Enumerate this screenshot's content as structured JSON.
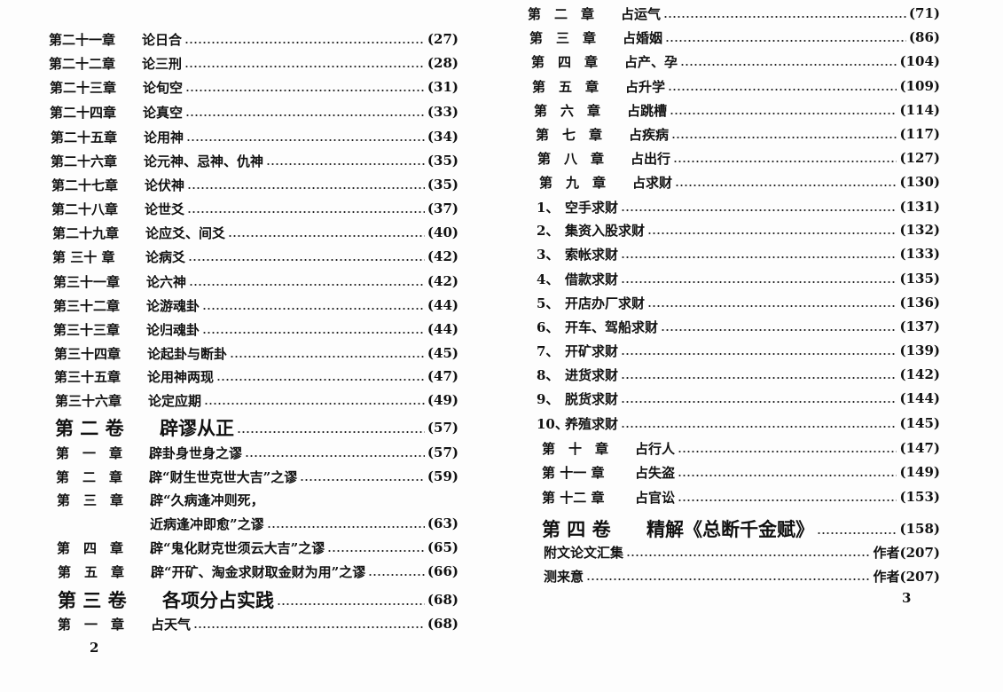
{
  "left_page": {
    "page_number": "2",
    "entries": [
      {
        "type": "chapter",
        "num": "第二十一章",
        "title": "论日合",
        "page": "(27)"
      },
      {
        "type": "chapter",
        "num": "第二十二章",
        "title": "论三刑",
        "page": "(28)"
      },
      {
        "type": "chapter",
        "num": "第二十三章",
        "title": "论旬空",
        "page": "(31)"
      },
      {
        "type": "chapter",
        "num": "第二十四章",
        "title": "论真空",
        "page": "(33)"
      },
      {
        "type": "chapter",
        "num": "第二十五章",
        "title": "论用神",
        "page": "(34)"
      },
      {
        "type": "chapter",
        "num": "第二十六章",
        "title": "论元神、忌神、仇神",
        "page": "(35)"
      },
      {
        "type": "chapter",
        "num": "第二十七章",
        "title": "论伏神",
        "page": "(35)"
      },
      {
        "type": "chapter",
        "num": "第二十八章",
        "title": "论世爻",
        "page": "(37)"
      },
      {
        "type": "chapter",
        "num": "第二十九章",
        "title": "论应爻、间爻",
        "page": "(40)"
      },
      {
        "type": "chapter",
        "num": "第 三十 章",
        "title": "论病爻",
        "page": "(42)"
      },
      {
        "type": "chapter",
        "num": "第三十一章",
        "title": "论六神",
        "page": "(42)"
      },
      {
        "type": "chapter",
        "num": "第三十二章",
        "title": "论游魂卦",
        "page": "(44)"
      },
      {
        "type": "chapter",
        "num": "第三十三章",
        "title": "论归魂卦",
        "page": "(44)"
      },
      {
        "type": "chapter",
        "num": "第三十四章",
        "title": "论起卦与断卦",
        "page": "(45)"
      },
      {
        "type": "chapter",
        "num": "第三十五章",
        "title": "论用神两现",
        "page": "(47)"
      },
      {
        "type": "chapter",
        "num": "第三十六章",
        "title": "论定应期",
        "page": "(49)"
      },
      {
        "type": "volume",
        "num": "第 二 卷",
        "title": "辟谬从正",
        "page": "(57)"
      },
      {
        "type": "chapter",
        "num": "第　一　章",
        "title": "辟卦身世身之谬",
        "page": "(57)"
      },
      {
        "type": "chapter",
        "num": "第　二　章",
        "title": "辟“财生世克世大吉”之谬",
        "page": "(59)"
      },
      {
        "type": "cont",
        "num": "第　三　章",
        "title": "辟“久病逢冲则死，",
        "page": ""
      },
      {
        "type": "chapter",
        "num": "",
        "title": "近病逢冲即愈”之谬",
        "page": "(63)"
      },
      {
        "type": "chapter",
        "num": "第　四　章",
        "title": "辟“鬼化财克世须云大吉”之谬",
        "page": "(65)"
      },
      {
        "type": "chapter",
        "num": "第　五　章",
        "title": "辟“开矿、淘金求财取金财为用”之谬",
        "page": "(66)"
      },
      {
        "type": "volume",
        "num": "第 三 卷",
        "title": "各项分占实践",
        "page": "(68)"
      },
      {
        "type": "chapter",
        "num": "第　一　章",
        "title": "占天气",
        "page": "(68)"
      }
    ]
  },
  "right_page": {
    "page_number": "3",
    "entries": [
      {
        "type": "chapter",
        "num": "第　二　章",
        "title": "占运气",
        "page": "(71)"
      },
      {
        "type": "chapter",
        "num": "第　三　章",
        "title": "占婚姻",
        "page": "(86)"
      },
      {
        "type": "chapter",
        "num": "第　四　章",
        "title": "占产、孕",
        "page": "(104)"
      },
      {
        "type": "chapter",
        "num": "第　五　章",
        "title": "占升学",
        "page": "(109)"
      },
      {
        "type": "chapter",
        "num": "第　六　章",
        "title": "占跳槽",
        "page": "(114)"
      },
      {
        "type": "chapter",
        "num": "第　七　章",
        "title": "占疾病",
        "page": "(117)"
      },
      {
        "type": "chapter",
        "num": "第　八　章",
        "title": "占出行",
        "page": "(127)"
      },
      {
        "type": "chapter",
        "num": "第　九　章",
        "title": "占求财",
        "page": "(130)"
      },
      {
        "type": "section",
        "num": "1、",
        "title": "空手求财",
        "page": "(131)"
      },
      {
        "type": "section",
        "num": "2、",
        "title": "集资入股求财",
        "page": "(132)"
      },
      {
        "type": "section",
        "num": "3、",
        "title": "索帐求财",
        "page": "(133)"
      },
      {
        "type": "section",
        "num": "4、",
        "title": "借款求财",
        "page": "(135)"
      },
      {
        "type": "section",
        "num": "5、",
        "title": "开店办厂求财",
        "page": "(136)"
      },
      {
        "type": "section",
        "num": "6、",
        "title": "开车、驾船求财",
        "page": "(137)"
      },
      {
        "type": "section",
        "num": "7、",
        "title": "开矿求财",
        "page": "(139)"
      },
      {
        "type": "section",
        "num": "8、",
        "title": "进货求财",
        "page": "(142)"
      },
      {
        "type": "section",
        "num": "9、",
        "title": "脱货求财",
        "page": "(144)"
      },
      {
        "type": "section",
        "num": "10、",
        "title": "养殖求财",
        "page": "(145)"
      },
      {
        "type": "chapter",
        "num": "第　十　章",
        "title": "占行人",
        "page": "(147)"
      },
      {
        "type": "chapter",
        "num": "第 十一 章",
        "title": "占失盗",
        "page": "(149)"
      },
      {
        "type": "chapter",
        "num": "第 十二 章",
        "title": "占官讼",
        "page": "(153)"
      },
      {
        "type": "volume",
        "num": "第 四 卷",
        "title": "精解《总断千金赋》",
        "page": "(158)"
      },
      {
        "type": "appendix",
        "num": "",
        "title": "附文论文汇集",
        "page": "作者(207)"
      },
      {
        "type": "appendix",
        "num": "",
        "title": "测来意",
        "page": "作者(207)"
      }
    ]
  }
}
